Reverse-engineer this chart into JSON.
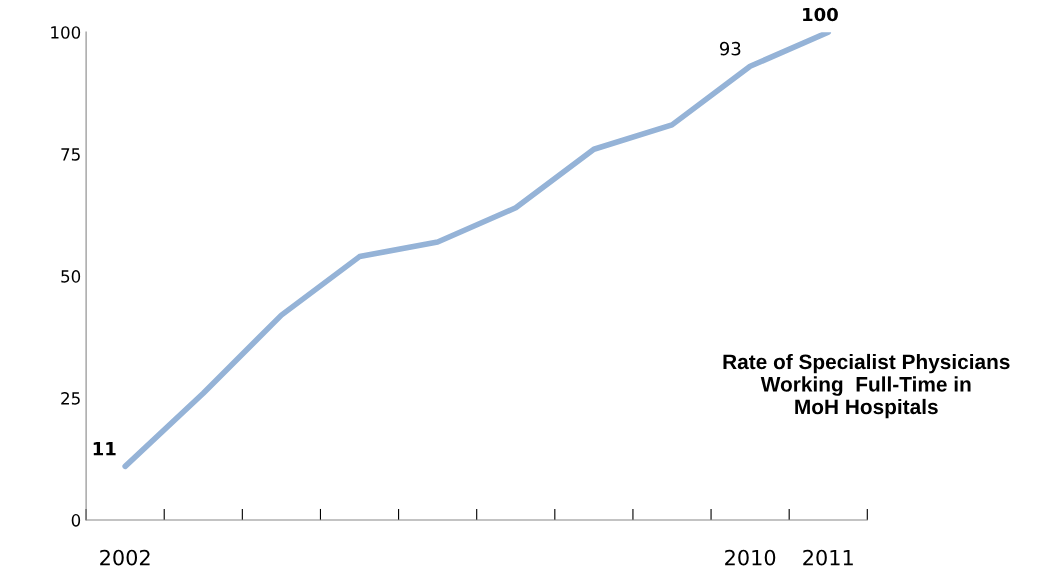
{
  "chart_data": {
    "type": "line",
    "categories": [
      "2002",
      null,
      null,
      null,
      null,
      null,
      null,
      null,
      "2010",
      "2011"
    ],
    "series": [
      {
        "color": "#95b3d7",
        "values": [
          11,
          26,
          42,
          54,
          57,
          64,
          76,
          81,
          93,
          100
        ],
        "value_labels": [
          "11",
          null,
          null,
          null,
          null,
          null,
          null,
          null,
          "93",
          "100"
        ]
      }
    ],
    "ylim": [
      0,
      100
    ],
    "yticks": [
      0,
      25,
      50,
      75,
      100
    ],
    "marker": "none",
    "line_style": "solid",
    "annotations": [
      "Rate of Specialist Physicians\nWorking  Full-Time in\nMoH Hospitals"
    ]
  }
}
